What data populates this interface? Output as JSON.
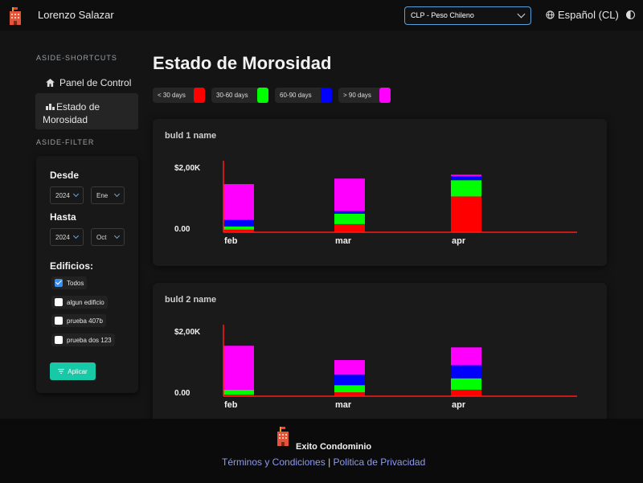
{
  "header": {
    "user_name": "Lorenzo Salazar",
    "currency": "CLP - Peso Chileno",
    "language": "Español (CL)"
  },
  "aside": {
    "shortcuts_title": "ASIDE-SHORTCUTS",
    "items": [
      {
        "label": "Panel de Control",
        "icon": "home-icon"
      },
      {
        "label": "Estado de Morosidad",
        "icon": "bar-chart-icon"
      }
    ],
    "filter_title": "ASIDE-FILTER",
    "filter": {
      "desde_label": "Desde",
      "desde_year": "2024",
      "desde_month": "Ene",
      "hasta_label": "Hasta",
      "hasta_year": "2024",
      "hasta_month": "Oct",
      "edificios_label": "Edificios:",
      "buildings": [
        {
          "label": "Todos",
          "checked": true
        },
        {
          "label": "algun edificio",
          "checked": false
        },
        {
          "label": "prueba 407b",
          "checked": false
        },
        {
          "label": "prueba dos 123",
          "checked": false
        }
      ],
      "apply_label": "Aplicar"
    }
  },
  "main": {
    "title": "Estado de Morosidad",
    "legend": [
      {
        "label": "< 30 days",
        "color": "#ff0000"
      },
      {
        "label": "30-60 days",
        "color": "#00ff00"
      },
      {
        "label": "60-90 days",
        "color": "#0000ff"
      },
      {
        "label": "> 90 days",
        "color": "#ff00ff"
      }
    ]
  },
  "chart_data": [
    {
      "type": "bar",
      "stacked": true,
      "title": "buld 1 name",
      "categories": [
        "feb",
        "mar",
        "apr"
      ],
      "y_ticks": [
        "$2,00K",
        "0.00"
      ],
      "ylim": [
        0,
        2000
      ],
      "series": [
        {
          "name": "< 30 days",
          "color": "#ff0000",
          "values": [
            80,
            250,
            1100
          ]
        },
        {
          "name": "30-60 days",
          "color": "#00ff00",
          "values": [
            100,
            320,
            500
          ]
        },
        {
          "name": "60-90 days",
          "color": "#0000ff",
          "values": [
            200,
            80,
            120
          ]
        },
        {
          "name": "> 90 days",
          "color": "#ff00ff",
          "values": [
            1100,
            1000,
            50
          ]
        }
      ]
    },
    {
      "type": "bar",
      "stacked": true,
      "title": "buld 2 name",
      "categories": [
        "feb",
        "mar",
        "apr"
      ],
      "y_ticks": [
        "$2,00K",
        "0.00"
      ],
      "ylim": [
        0,
        2000
      ],
      "series": [
        {
          "name": "< 30 days",
          "color": "#ff0000",
          "values": [
            50,
            120,
            200
          ]
        },
        {
          "name": "30-60 days",
          "color": "#00ff00",
          "values": [
            150,
            220,
            350
          ]
        },
        {
          "name": "60-90 days",
          "color": "#0000ff",
          "values": [
            0,
            320,
            400
          ]
        },
        {
          "name": "> 90 days",
          "color": "#ff00ff",
          "values": [
            1350,
            450,
            550
          ]
        }
      ]
    }
  ],
  "footer": {
    "brand": "Exito Condominio",
    "terms": "Términos y Condiciones",
    "separator": "|",
    "privacy": "Politica de Privacidad"
  }
}
